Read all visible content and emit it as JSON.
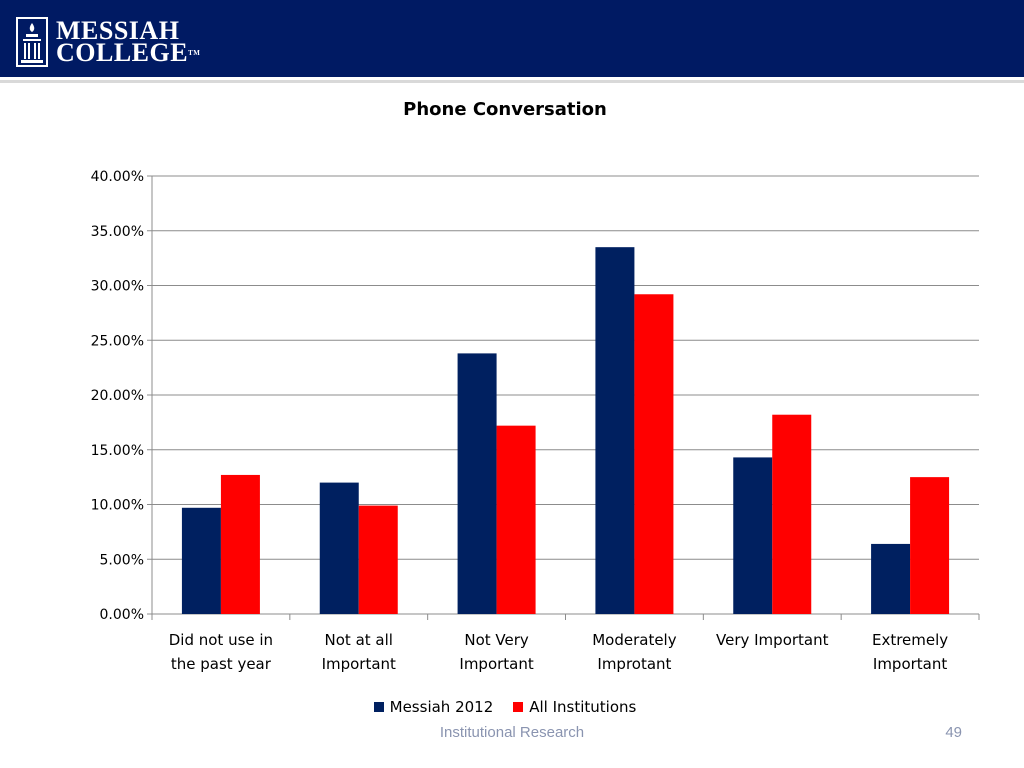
{
  "header": {
    "logo_line1": "MESSIAH",
    "logo_line2": "COLLEGE",
    "logo_tm": "TM"
  },
  "colors": {
    "header_bg": "#001a63",
    "series_messiah": "#002060",
    "series_all": "#ff0000",
    "gridline": "#8c8c8c"
  },
  "chart_data": {
    "type": "bar",
    "title": "Phone Conversation",
    "categories": [
      [
        "Did not use in",
        "the past year"
      ],
      [
        "Not at all",
        "Important"
      ],
      [
        "Not Very",
        "Important"
      ],
      [
        "Moderately",
        "Improtant"
      ],
      [
        "Very Important"
      ],
      [
        "Extremely",
        "Important"
      ]
    ],
    "series": [
      {
        "name": "Messiah 2012",
        "color": "#002060",
        "values": [
          9.7,
          12.0,
          23.8,
          33.5,
          14.3,
          6.4
        ]
      },
      {
        "name": "All Institutions",
        "color": "#ff0000",
        "values": [
          12.7,
          9.9,
          17.2,
          29.2,
          18.2,
          12.5
        ]
      }
    ],
    "ylim": [
      0,
      40
    ],
    "yticks": [
      "0.00%",
      "5.00%",
      "10.00%",
      "15.00%",
      "20.00%",
      "25.00%",
      "30.00%",
      "35.00%",
      "40.00%"
    ],
    "grid": true,
    "legend_position": "bottom"
  },
  "footer": {
    "text": "Institutional Research",
    "page_number": "49"
  }
}
